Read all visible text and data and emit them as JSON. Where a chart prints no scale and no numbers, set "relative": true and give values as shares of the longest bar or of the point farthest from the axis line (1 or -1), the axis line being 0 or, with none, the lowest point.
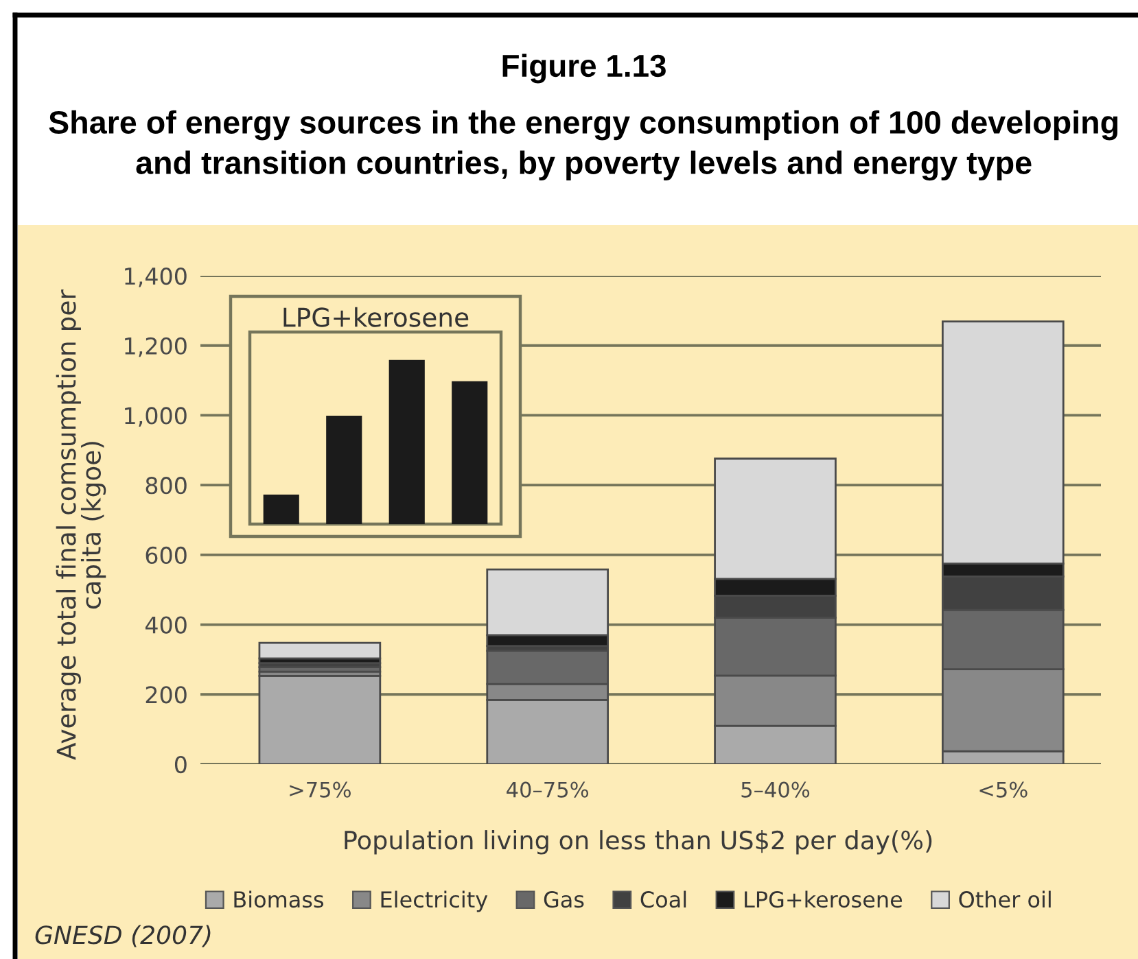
{
  "chart_data": [
    {
      "type": "bar",
      "title": "Figure 1.13",
      "subtitle": "Share of energy sources in the energy consumption of 100 developing\nand transition countries, by poverty levels and energy type",
      "xlabel": "Population living on less than US$2 per day(%)",
      "ylabel": "Average total final comsumption per\ncapita (kgoe)",
      "categories": [
        ">75%",
        "40–75%",
        "5–40%",
        "<5%"
      ],
      "stacked": true,
      "series": [
        {
          "name": "Biomass",
          "color": "#aaaaaa",
          "values": [
            253,
            184,
            110,
            37
          ]
        },
        {
          "name": "Electricity",
          "color": "#888888",
          "values": [
            12,
            46,
            144,
            235
          ]
        },
        {
          "name": "Gas",
          "color": "#686868",
          "values": [
            13,
            95,
            166,
            170
          ]
        },
        {
          "name": "Coal",
          "color": "#414141",
          "values": [
            12,
            14,
            63,
            96
          ]
        },
        {
          "name": "LPG+kerosene",
          "color": "#1b1b1b",
          "values": [
            13,
            31,
            48,
            37
          ]
        },
        {
          "name": "Other oil",
          "color": "#d8d8d8",
          "values": [
            45,
            188,
            345,
            694
          ]
        }
      ],
      "ylim": [
        0,
        1400
      ],
      "yticks": [
        0,
        200,
        400,
        600,
        800,
        {
          "value": 1000,
          "label": "1,000"
        },
        {
          "value": 1200,
          "label": "1,200"
        },
        {
          "value": 1400,
          "label": "1,400"
        }
      ],
      "grid": "y",
      "legend": "bottom",
      "annotations": [
        "GNESD (2007)"
      ]
    },
    {
      "type": "bar",
      "title": "LPG+kerosene",
      "categories": [
        null,
        null,
        null,
        null
      ],
      "values": [
        0.18,
        0.66,
        1,
        0.87
      ],
      "color": "#1b1b1b",
      "relative": true
    }
  ]
}
